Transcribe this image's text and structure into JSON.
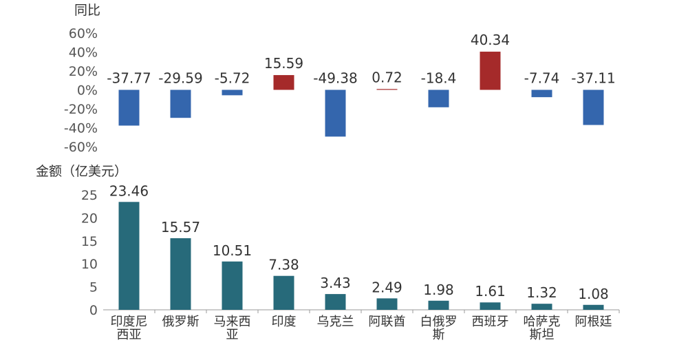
{
  "chart_data": [
    {
      "type": "bar",
      "ylabel": "同比",
      "categories": [
        "印度尼西亚",
        "俄罗斯",
        "马来西亚",
        "印度",
        "乌克兰",
        "阿联酋",
        "白俄罗斯",
        "西班牙",
        "哈萨克斯坦",
        "阿根廷"
      ],
      "values": [
        -37.77,
        -29.59,
        -5.72,
        15.59,
        -49.38,
        0.72,
        -18.4,
        40.34,
        -7.74,
        -37.11
      ],
      "data_labels": [
        "-37.77",
        "-29.59",
        "-5.72",
        "15.59",
        "-49.38",
        "0.72",
        "-18.4",
        "40.34",
        "-7.74",
        "-37.11"
      ],
      "yticks": [
        "60%",
        "40%",
        "20%",
        "0%",
        "-20%",
        "-40%",
        "-60%"
      ],
      "ylim": [
        -60,
        60
      ],
      "grid": false,
      "colors": {
        "positive": "#a52a2a",
        "negative": "#3466ad"
      }
    },
    {
      "type": "bar",
      "ylabel": "金额（亿美元）",
      "categories": [
        "印度尼西亚",
        "俄罗斯",
        "马来西亚",
        "印度",
        "乌克兰",
        "阿联酋",
        "白俄罗斯",
        "西班牙",
        "哈萨克斯坦",
        "阿根廷"
      ],
      "category_labels": [
        [
          "印度尼",
          "西亚"
        ],
        [
          "俄罗斯"
        ],
        [
          "马来西",
          "亚"
        ],
        [
          "印度"
        ],
        [
          "乌克兰"
        ],
        [
          "阿联酋"
        ],
        [
          "白俄罗",
          "斯"
        ],
        [
          "西班牙"
        ],
        [
          "哈萨克",
          "斯坦"
        ],
        [
          "阿根廷"
        ]
      ],
      "values": [
        23.46,
        15.57,
        10.51,
        7.38,
        3.43,
        2.49,
        1.98,
        1.61,
        1.32,
        1.08
      ],
      "data_labels": [
        "23.46",
        "15.57",
        "10.51",
        "7.38",
        "3.43",
        "2.49",
        "1.98",
        "1.61",
        "1.32",
        "1.08"
      ],
      "yticks": [
        "25",
        "20",
        "15",
        "10",
        "5",
        "0"
      ],
      "ylim": [
        0,
        25
      ],
      "grid": false,
      "colors": {
        "bar": "#276a7a"
      }
    }
  ]
}
